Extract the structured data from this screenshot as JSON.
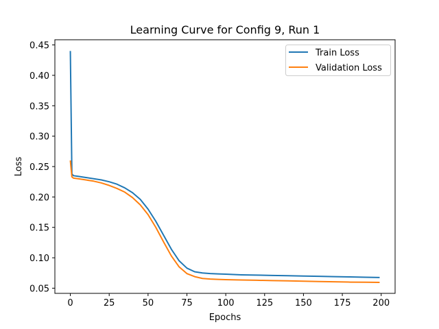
{
  "chart_data": {
    "type": "line",
    "title": "Learning Curve for Config 9, Run 1",
    "xlabel": "Epochs",
    "ylabel": "Loss",
    "xlim": [
      -9.95,
      208.95
    ],
    "ylim": [
      0.0415,
      0.4585
    ],
    "xticks": [
      0,
      25,
      50,
      75,
      100,
      125,
      150,
      175,
      200
    ],
    "yticks": [
      0.05,
      0.1,
      0.15,
      0.2,
      0.25,
      0.3,
      0.35,
      0.4,
      0.45
    ],
    "ytick_labels": [
      "0.05",
      "0.10",
      "0.15",
      "0.20",
      "0.25",
      "0.30",
      "0.35",
      "0.40",
      "0.45"
    ],
    "grid": false,
    "legend_position": "upper right",
    "series": [
      {
        "name": "Train Loss",
        "color": "#1f77b4",
        "x": [
          0,
          1,
          2,
          5,
          10,
          15,
          20,
          25,
          30,
          35,
          40,
          45,
          50,
          55,
          60,
          65,
          70,
          75,
          80,
          85,
          90,
          95,
          100,
          110,
          120,
          130,
          140,
          150,
          160,
          170,
          180,
          190,
          199
        ],
        "y": [
          0.44,
          0.238,
          0.235,
          0.234,
          0.232,
          0.23,
          0.228,
          0.225,
          0.221,
          0.215,
          0.207,
          0.196,
          0.18,
          0.16,
          0.137,
          0.114,
          0.095,
          0.083,
          0.077,
          0.075,
          0.074,
          0.0735,
          0.073,
          0.072,
          0.0715,
          0.071,
          0.0705,
          0.07,
          0.0695,
          0.069,
          0.0685,
          0.068,
          0.0675
        ]
      },
      {
        "name": "Validation Loss",
        "color": "#ff7f0e",
        "x": [
          0,
          1,
          2,
          5,
          10,
          15,
          20,
          25,
          30,
          35,
          40,
          45,
          50,
          55,
          60,
          65,
          70,
          75,
          80,
          85,
          90,
          95,
          100,
          110,
          120,
          130,
          140,
          150,
          160,
          170,
          180,
          190,
          199
        ],
        "y": [
          0.26,
          0.233,
          0.231,
          0.23,
          0.228,
          0.226,
          0.223,
          0.219,
          0.214,
          0.208,
          0.199,
          0.187,
          0.171,
          0.15,
          0.126,
          0.103,
          0.085,
          0.074,
          0.069,
          0.066,
          0.065,
          0.0645,
          0.064,
          0.0635,
          0.063,
          0.0625,
          0.062,
          0.0615,
          0.061,
          0.0605,
          0.06,
          0.0598,
          0.0595
        ]
      }
    ]
  }
}
